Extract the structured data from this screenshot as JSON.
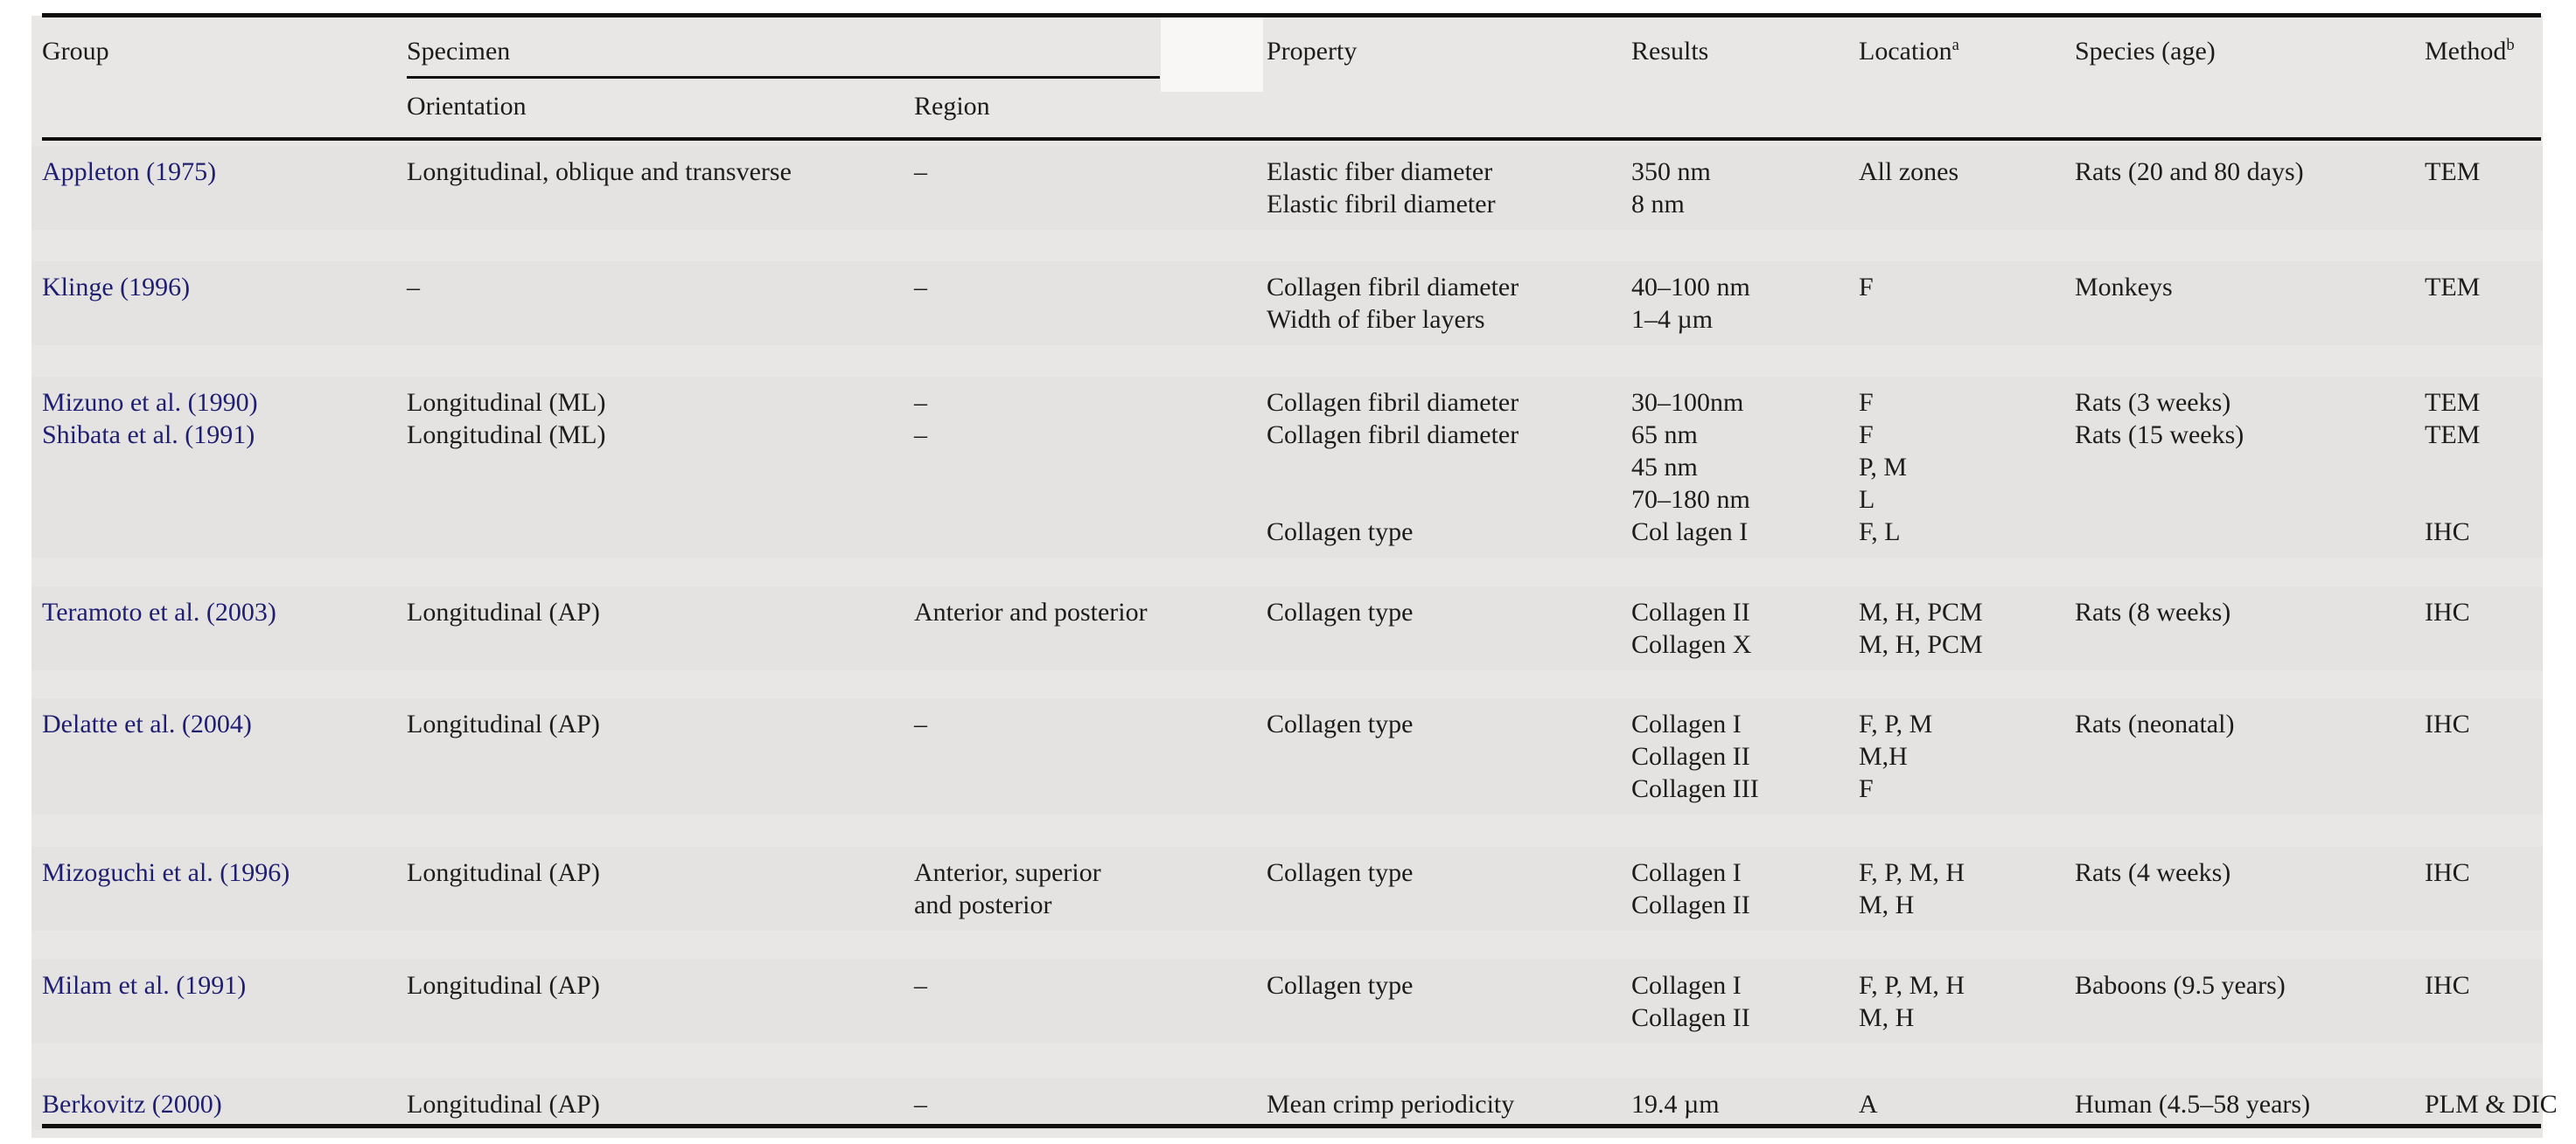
{
  "table": {
    "headers": {
      "group": "Group",
      "specimen": "Specimen",
      "orientation": "Orientation",
      "region": "Region",
      "property": "Property",
      "results": "Results",
      "location": "Location",
      "location_sup": "a",
      "species": "Species (age)",
      "method": "Method",
      "method_sup": "b"
    },
    "colors": {
      "citation_link": "#1f1f72",
      "text": "#1c1c1c",
      "surface": "#e9e7e6",
      "rule": "#0f0f0f"
    },
    "blocks": [
      {
        "group": [
          "Appleton (1975)"
        ],
        "orientation": [
          "Longitudinal, oblique and transverse"
        ],
        "region": [
          "–"
        ],
        "property": [
          "Elastic fiber diameter",
          "Elastic fibril diameter"
        ],
        "results": [
          "350 nm",
          "8 nm"
        ],
        "location": [
          "All zones"
        ],
        "species": [
          "Rats (20 and 80 days)"
        ],
        "method": [
          "TEM"
        ]
      },
      {
        "group": [
          "Klinge (1996)"
        ],
        "orientation": [
          "–"
        ],
        "region": [
          "–"
        ],
        "property": [
          "Collagen fibril diameter",
          "Width of fiber layers"
        ],
        "results": [
          "40–100 nm",
          "1–4 µm"
        ],
        "location": [
          "F"
        ],
        "species": [
          "Monkeys"
        ],
        "method": [
          "TEM"
        ]
      },
      {
        "group": [
          "Mizuno et al. (1990)",
          "Shibata et al. (1991)"
        ],
        "orientation": [
          "Longitudinal (ML)",
          "Longitudinal (ML)"
        ],
        "region": [
          "–",
          "–"
        ],
        "property": [
          "Collagen fibril diameter",
          "Collagen fibril diameter",
          "",
          "",
          "Collagen type"
        ],
        "results": [
          "30–100nm",
          "65 nm",
          "45 nm",
          "70–180 nm",
          "Col lagen I"
        ],
        "location": [
          "F",
          "F",
          "P, M",
          "L",
          "F, L"
        ],
        "species": [
          "Rats (3 weeks)",
          "Rats (15 weeks)"
        ],
        "method": [
          "TEM",
          "TEM",
          "",
          "",
          "IHC"
        ]
      },
      {
        "group": [
          "Teramoto et al. (2003)"
        ],
        "orientation": [
          "Longitudinal (AP)"
        ],
        "region": [
          "Anterior and posterior"
        ],
        "property": [
          "Collagen type"
        ],
        "results": [
          "Collagen II",
          "Collagen X"
        ],
        "location": [
          "M, H, PCM",
          "M, H, PCM"
        ],
        "species": [
          "Rats (8 weeks)"
        ],
        "method": [
          "IHC"
        ]
      },
      {
        "group": [
          "Delatte et al. (2004)"
        ],
        "orientation": [
          "Longitudinal (AP)"
        ],
        "region": [
          "–"
        ],
        "property": [
          "Collagen type"
        ],
        "results": [
          "Collagen I",
          "Collagen II",
          "Collagen III"
        ],
        "location": [
          "F, P, M",
          "M,H",
          "F"
        ],
        "species": [
          "Rats (neonatal)"
        ],
        "method": [
          "IHC"
        ]
      },
      {
        "group": [
          "Mizoguchi et al. (1996)"
        ],
        "orientation": [
          "Longitudinal (AP)"
        ],
        "region": [
          "Anterior, superior",
          "and posterior"
        ],
        "property": [
          "Collagen type"
        ],
        "results": [
          "Collagen I",
          "Collagen II"
        ],
        "location": [
          "F, P, M, H",
          "M, H"
        ],
        "species": [
          "Rats (4 weeks)"
        ],
        "method": [
          "IHC"
        ]
      },
      {
        "group": [
          "Milam et al. (1991)"
        ],
        "orientation": [
          "Longitudinal (AP)"
        ],
        "region": [
          "–"
        ],
        "property": [
          "Collagen type"
        ],
        "results": [
          "Collagen I",
          "Collagen II"
        ],
        "location": [
          "F, P, M, H",
          "M, H"
        ],
        "species": [
          "Baboons (9.5 years)"
        ],
        "method": [
          "IHC"
        ]
      },
      {
        "group": [
          "Berkovitz (2000)"
        ],
        "orientation": [
          "Longitudinal (AP)"
        ],
        "region": [
          "–"
        ],
        "property": [
          "Mean crimp periodicity"
        ],
        "results": [
          "19.4 µm"
        ],
        "location": [
          "A"
        ],
        "species": [
          "Human (4.5–58 years)"
        ],
        "method": [
          "PLM & DIC"
        ]
      }
    ]
  }
}
